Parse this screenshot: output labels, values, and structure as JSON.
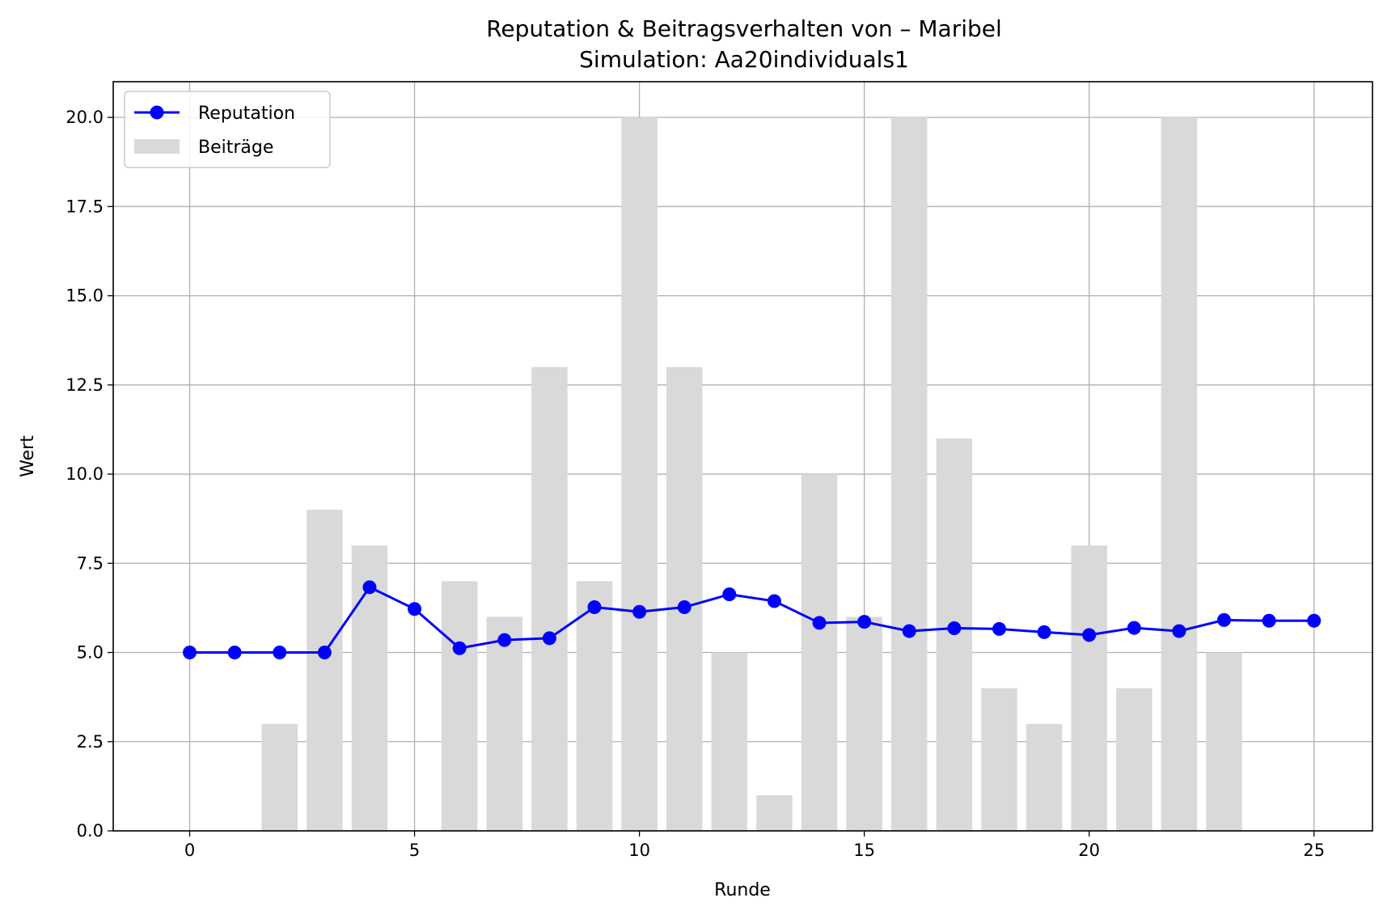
{
  "chart_data": {
    "type": "bar",
    "title": "Reputation & Beitragsverhalten von – Maribel",
    "subtitle": "Simulation: Aa20individuals1",
    "xlabel": "Runde",
    "ylabel": "Wert",
    "xlim": [
      -1.7,
      26.3
    ],
    "ylim": [
      0,
      21
    ],
    "x_ticks": [
      0,
      5,
      10,
      15,
      20,
      25
    ],
    "y_ticks": [
      0.0,
      2.5,
      5.0,
      7.5,
      10.0,
      12.5,
      15.0,
      17.5,
      20.0
    ],
    "grid": true,
    "legend_position": "top-left",
    "series": [
      {
        "name": "Beiträge",
        "kind": "bar",
        "color": "#d9d9d9",
        "x": [
          0,
          1,
          2,
          3,
          4,
          5,
          6,
          7,
          8,
          9,
          10,
          11,
          12,
          13,
          14,
          15,
          16,
          17,
          18,
          19,
          20,
          21,
          22,
          23,
          24,
          25
        ],
        "values": [
          0,
          0,
          3,
          9,
          8,
          0,
          7,
          6,
          13,
          7,
          20,
          13,
          5,
          1,
          10,
          6,
          20,
          11,
          4,
          3,
          8,
          4,
          20,
          5,
          0,
          0
        ]
      },
      {
        "name": "Reputation",
        "kind": "line",
        "marker": "circle",
        "color": "#0000ff",
        "x": [
          0,
          1,
          2,
          3,
          4,
          5,
          6,
          7,
          8,
          9,
          10,
          11,
          12,
          13,
          14,
          15,
          16,
          17,
          18,
          19,
          20,
          21,
          22,
          23,
          24,
          25
        ],
        "values": [
          5.0,
          5.0,
          5.0,
          5.0,
          6.83,
          6.22,
          5.12,
          5.35,
          5.4,
          6.27,
          6.14,
          6.27,
          6.63,
          6.44,
          5.83,
          5.86,
          5.6,
          5.68,
          5.66,
          5.57,
          5.49,
          5.69,
          5.6,
          5.91,
          5.89,
          5.89
        ]
      }
    ]
  }
}
